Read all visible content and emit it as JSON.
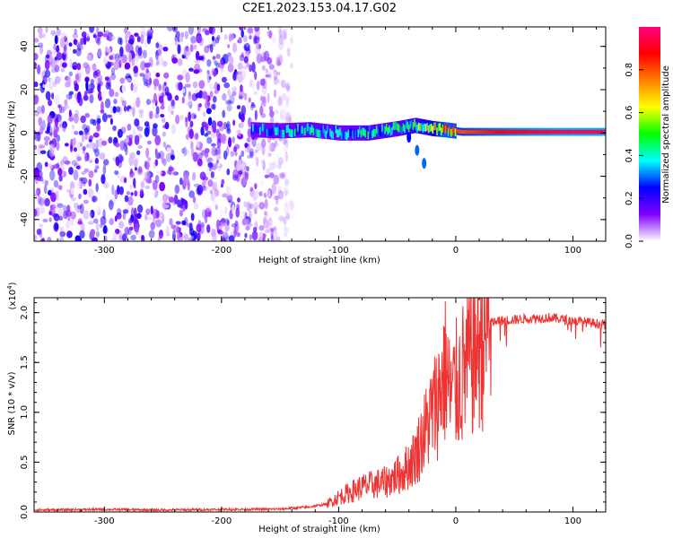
{
  "title": "C2E1.2023.153.04.17.G02",
  "chart_data": [
    {
      "type": "heatmap",
      "xlabel": "Height of straight line (km)",
      "ylabel": "Frequency (Hz)",
      "xlim": [
        -360,
        128
      ],
      "ylim": [
        -50,
        49
      ],
      "xticks": [
        -300,
        -200,
        -100,
        0,
        100
      ],
      "yticks": [
        -40,
        -20,
        0,
        20,
        40
      ],
      "xtick_labels": [
        "-300",
        "-200",
        "-100",
        "0",
        "100"
      ],
      "ytick_labels": [
        "-40",
        "-20",
        "0",
        "20",
        "40"
      ],
      "colorbar": {
        "label": "Normalized spectral amplitude",
        "range": [
          0,
          1
        ],
        "ticks": [
          0.0,
          0.2,
          0.4,
          0.6,
          0.8
        ],
        "tick_labels": [
          "0.0",
          "0.2",
          "0.4",
          "0.6",
          "0.8"
        ],
        "colors": [
          "#ffffff",
          "#8000ff",
          "#0000ff",
          "#00ffff",
          "#00ff00",
          "#ffff00",
          "#ff8000",
          "#ff0000",
          "#ff0080"
        ]
      },
      "noise_region": {
        "x_from": -360,
        "x_to": -140,
        "f_from": -50,
        "f_to": 49,
        "level": 0.15
      },
      "signal_band": [
        {
          "x": -175,
          "f": 1.5,
          "amp": 0.35
        },
        {
          "x": -150,
          "f": 1.0,
          "amp": 0.4
        },
        {
          "x": -125,
          "f": 1.5,
          "amp": 0.45
        },
        {
          "x": -100,
          "f": 0.0,
          "amp": 0.4
        },
        {
          "x": -75,
          "f": 0.0,
          "amp": 0.45
        },
        {
          "x": -50,
          "f": 2.0,
          "amp": 0.5
        },
        {
          "x": -35,
          "f": 3.5,
          "amp": 0.55
        },
        {
          "x": -20,
          "f": 2.0,
          "amp": 0.7
        },
        {
          "x": -10,
          "f": 1.5,
          "amp": 0.85
        },
        {
          "x": 5,
          "f": 0.5,
          "amp": 0.8
        },
        {
          "x": 25,
          "f": 0.5,
          "amp": 0.85
        },
        {
          "x": 50,
          "f": 0.5,
          "amp": 0.9
        },
        {
          "x": 90,
          "f": 0.5,
          "amp": 0.95
        },
        {
          "x": 128,
          "f": 0.5,
          "amp": 0.95
        }
      ],
      "branch": [
        {
          "x": -40,
          "f": -2,
          "amp": 0.25
        },
        {
          "x": -33,
          "f": -8,
          "amp": 0.3
        },
        {
          "x": -27,
          "f": -14,
          "amp": 0.3
        }
      ]
    },
    {
      "type": "line",
      "xlabel": "Height of straight line (km)",
      "ylabel": "SNR (10 * v/v)",
      "yscale_label": "(x10",
      "yscale_exponent": "4",
      "yscale_suffix": ")",
      "xlim": [
        -360,
        128
      ],
      "ylim": [
        0,
        2.15
      ],
      "xticks": [
        -300,
        -200,
        -100,
        0,
        100
      ],
      "yticks": [
        0.0,
        0.5,
        1.0,
        1.5,
        2.0
      ],
      "xtick_labels": [
        "-300",
        "-200",
        "-100",
        "0",
        "100"
      ],
      "ytick_labels": [
        "0.0",
        "0.5",
        "1.0",
        "1.5",
        "2.0"
      ],
      "color": "#ee3333",
      "x": [
        -360,
        -300,
        -250,
        -200,
        -150,
        -125,
        -110,
        -100,
        -80,
        -60,
        -45,
        -35,
        -25,
        -20,
        -15,
        -12,
        -8,
        -5,
        0,
        5,
        10,
        15,
        20,
        25,
        30,
        40,
        50,
        60,
        80,
        100,
        128
      ],
      "y": [
        0.02,
        0.025,
        0.02,
        0.025,
        0.03,
        0.05,
        0.08,
        0.15,
        0.25,
        0.3,
        0.4,
        0.55,
        0.85,
        1.0,
        1.15,
        1.3,
        1.45,
        1.15,
        1.25,
        1.35,
        1.5,
        1.6,
        1.7,
        1.8,
        1.9,
        1.92,
        1.93,
        1.94,
        1.95,
        1.92,
        1.88
      ]
    }
  ]
}
